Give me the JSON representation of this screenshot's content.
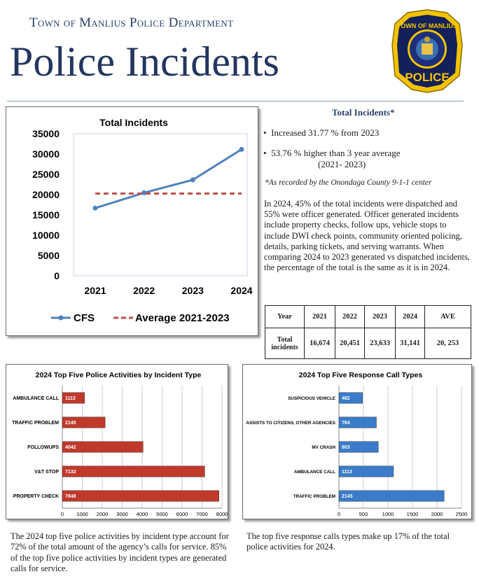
{
  "header": {
    "department": "Town of Manlius Police Department",
    "title": "Police Incidents"
  },
  "badge": {
    "top_text": "TOWN OF MANLIUS",
    "bottom_text": "POLICE",
    "colors": {
      "gold": "#f2c300",
      "navy": "#14205a"
    }
  },
  "total_incidents": {
    "title": "Total Incidents*",
    "bullets": [
      "Increased  31.77 % from 2023",
      "53.76 % higher than 3 year average",
      "(2021- 2023)"
    ],
    "note": "*As recorded by the Onondaga County 9-1-1 center",
    "paragraph": "In 2024, 45% of the total incidents were dispatched and 55% were officer generated. Officer generated incidents include property checks, follow ups, vehicle stops to include DWI check points, community oriented policing, details, parking tickets, and serving warrants.  When comparing 2024 to 2023 generated vs dispatched incidents, the percentage of the total is the same as it is in 2024."
  },
  "table": {
    "headers": [
      "Year",
      "2021",
      "2022",
      "2023",
      "2024",
      "AVE"
    ],
    "row_label": "Total incidents",
    "row_values": [
      "16,674",
      "20,451",
      "23,633",
      "31,141",
      "20, 253"
    ]
  },
  "captions": {
    "left": "The 2024 top five police activities by incident type account for 72% of the total amount of the agency’s calls for service.  85%  of the top five police activities by incident types are generated calls for service.",
    "right": "The top five response calls types make up 17% of the total police activities for 2024."
  },
  "chart_data": [
    {
      "type": "line",
      "title": "Total Incidents",
      "x": [
        "2021",
        "2022",
        "2023",
        "2024"
      ],
      "series": [
        {
          "name": "CFS",
          "values": [
            16674,
            20451,
            23633,
            31141
          ],
          "color": "#4f81bd",
          "style": "solid-markers"
        },
        {
          "name": "Average 2021-2023",
          "values": [
            20253,
            20253,
            20253,
            20253
          ],
          "color": "#c0504d",
          "style": "dashed"
        }
      ],
      "yticks": [
        0,
        5000,
        10000,
        15000,
        20000,
        25000,
        30000,
        35000
      ],
      "ylim": [
        0,
        35000
      ],
      "legend": "bottom",
      "grid": false
    },
    {
      "type": "bar",
      "orientation": "horizontal",
      "title": "2024 Top Five Police Activities by Incident Type",
      "categories": [
        "AMBULANCE CALL",
        "TRAFFIC PROBLEM",
        "FOLLOWUPS",
        "V&T STOP",
        "PROPERTY CHECK"
      ],
      "values": [
        1113,
        2145,
        4042,
        7132,
        7848
      ],
      "xticks": [
        0,
        1000,
        2000,
        3000,
        4000,
        5000,
        6000,
        7000,
        8000
      ],
      "xlim": [
        0,
        8000
      ],
      "color": "#c0392b",
      "grid": true
    },
    {
      "type": "bar",
      "orientation": "horizontal",
      "title": "2024 Top Five Response Call Types",
      "categories": [
        "SUSPICIOUS VEHICLE",
        "ASSISTS TO CITIZENS, OTHER AGENCIES",
        "MV CRASH",
        "AMBULANCE CALL",
        "TRAFFIC PROBLEM"
      ],
      "values": [
        482,
        764,
        803,
        1113,
        2145
      ],
      "xticks": [
        0,
        500,
        1000,
        1500,
        2000,
        2500
      ],
      "xlim": [
        0,
        2500
      ],
      "color": "#3a7cc9",
      "grid": true
    }
  ]
}
